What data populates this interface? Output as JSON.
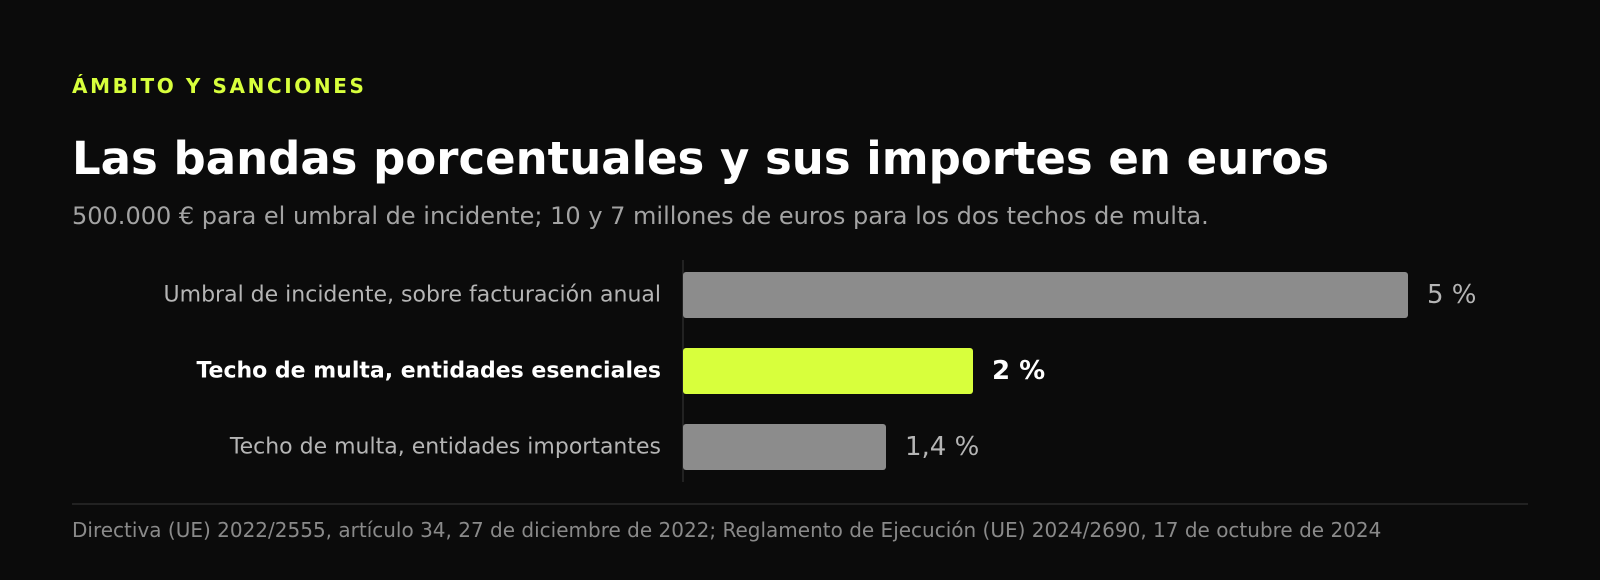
{
  "header": {
    "kicker": "ÁMBITO Y SANCIONES",
    "title": "Las bandas porcentuales y sus importes en euros",
    "subtitle": "500.000 € para el umbral de incidente; 10 y 7 millones de euros para los dos techos de multa."
  },
  "chart_data": {
    "type": "bar",
    "orientation": "horizontal",
    "categories": [
      "Umbral de incidente, sobre facturación anual",
      "Techo de multa, entidades esenciales",
      "Techo de multa, entidades importantes"
    ],
    "values": [
      5,
      2,
      1.4
    ],
    "value_labels": [
      "5 %",
      "2 %",
      "1,4 %"
    ],
    "highlight_index": 1,
    "xlim": [
      0,
      5
    ],
    "colors": {
      "default_bar": "#8c8c8c",
      "highlight_bar": "#d8ff3c",
      "default_label": "#b5b5b5",
      "highlight_label": "#ffffff"
    }
  },
  "footer": {
    "source": "Directiva (UE) 2022/2555, artículo 34, 27 de diciembre de 2022; Reglamento de Ejecución (UE) 2024/2690, 17 de octubre de 2024"
  }
}
